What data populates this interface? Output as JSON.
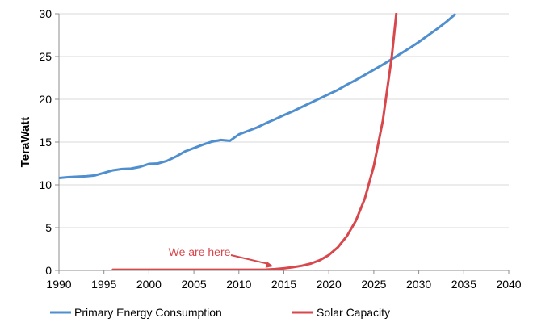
{
  "chart_data": {
    "type": "line",
    "title": "",
    "xlabel": "",
    "ylabel": "TeraWatt",
    "xlim": [
      1990,
      2040
    ],
    "ylim": [
      0,
      30
    ],
    "xticks": [
      1990,
      1995,
      2000,
      2005,
      2010,
      2015,
      2020,
      2025,
      2030,
      2035,
      2040
    ],
    "yticks": [
      0,
      5,
      10,
      15,
      20,
      25,
      30
    ],
    "grid": "horizontal",
    "legend": "bottom",
    "annotation": {
      "text": "We are here",
      "point": [
        2014,
        0.1
      ]
    },
    "series": [
      {
        "name": "Primary Energy Consumption",
        "color": "#4f8fcf",
        "x": [
          1990,
          1991,
          1992,
          1993,
          1994,
          1995,
          1996,
          1997,
          1998,
          1999,
          2000,
          2001,
          2002,
          2003,
          2004,
          2005,
          2006,
          2007,
          2008,
          2009,
          2010,
          2011,
          2012,
          2013,
          2014,
          2015,
          2016,
          2017,
          2018,
          2019,
          2020,
          2021,
          2022,
          2023,
          2024,
          2025,
          2026,
          2027,
          2028,
          2029,
          2030,
          2031,
          2032,
          2033,
          2034
        ],
        "y": [
          10.8,
          10.9,
          10.95,
          11.0,
          11.1,
          11.4,
          11.7,
          11.85,
          11.9,
          12.1,
          12.45,
          12.5,
          12.8,
          13.3,
          13.9,
          14.3,
          14.7,
          15.05,
          15.25,
          15.15,
          15.9,
          16.3,
          16.7,
          17.2,
          17.65,
          18.15,
          18.6,
          19.1,
          19.6,
          20.1,
          20.6,
          21.1,
          21.7,
          22.25,
          22.85,
          23.45,
          24.05,
          24.7,
          25.35,
          26.0,
          26.7,
          27.45,
          28.2,
          29.0,
          29.9
        ]
      },
      {
        "name": "Solar Capacity",
        "color": "#d7474c",
        "x": [
          1996,
          2000,
          2005,
          2010,
          2013,
          2014,
          2015,
          2016,
          2017,
          2018,
          2019,
          2020,
          2021,
          2022,
          2023,
          2024,
          2025,
          2026,
          2027,
          2027.5
        ],
        "y": [
          0.08,
          0.08,
          0.08,
          0.08,
          0.1,
          0.15,
          0.25,
          0.38,
          0.55,
          0.8,
          1.2,
          1.8,
          2.7,
          4.0,
          5.8,
          8.4,
          12.2,
          17.5,
          25.0,
          30.0
        ]
      }
    ]
  }
}
